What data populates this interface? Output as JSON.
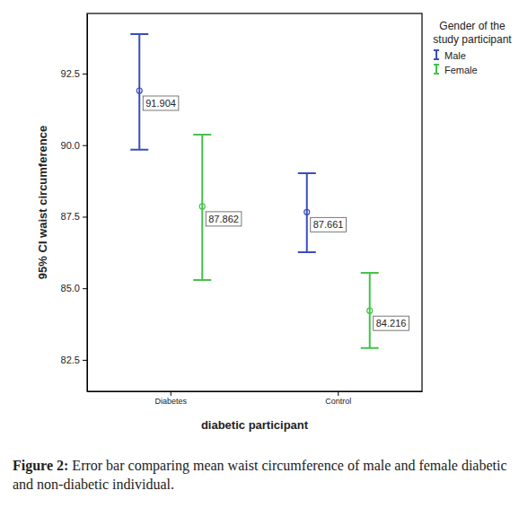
{
  "chart_data": {
    "type": "errorbar",
    "caption_label": "Figure 2:",
    "caption": "Error bar comparing mean waist circumference of male and female diabetic and non-diabetic individual.",
    "x_label": "diabetic participant",
    "y_label": "95% CI waist circumference",
    "legend_title": "Gender of the study participant",
    "legend": "right",
    "categories": [
      "Diabetes",
      "Control"
    ],
    "series": [
      {
        "name": "Male",
        "color": "#3a4dbf",
        "values": [
          91.904,
          87.661
        ],
        "lower": [
          89.84,
          86.26
        ],
        "upper": [
          93.88,
          89.02
        ]
      },
      {
        "name": "Female",
        "color": "#45c24a",
        "values": [
          87.862,
          84.216
        ],
        "lower": [
          85.29,
          82.91
        ],
        "upper": [
          90.37,
          85.54
        ]
      }
    ],
    "ylim": [
      81.4,
      94.6
    ],
    "yticks": [
      82.5,
      {
        "value": 85,
        "label": "85.0"
      },
      87.5,
      {
        "value": 90,
        "label": "90.0"
      },
      92.5
    ],
    "grid": false,
    "marker": "circle",
    "data_labels": true
  }
}
